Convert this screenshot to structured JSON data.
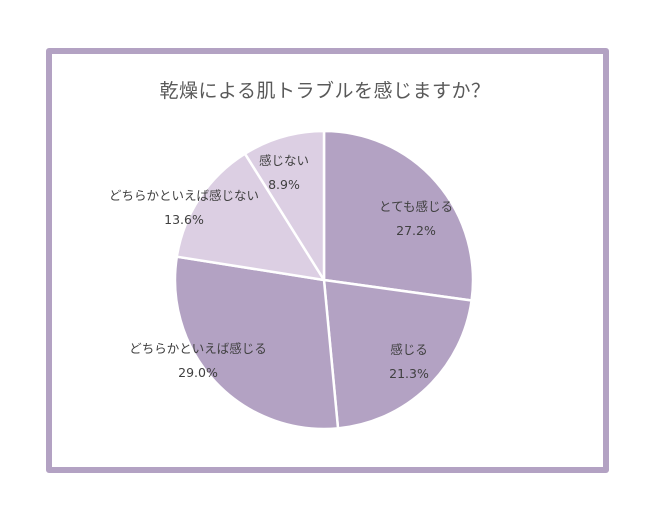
{
  "chart_data": {
    "type": "pie",
    "title": "乾燥による肌トラブルを感じますか？",
    "slices": [
      {
        "label": "とても感じる",
        "value": 27.2,
        "value_label": "27.2%",
        "color": "#b3a2c3"
      },
      {
        "label": "感じる",
        "value": 21.3,
        "value_label": "21.3%",
        "color": "#b3a2c3"
      },
      {
        "label": "どちらかといえば感じる",
        "value": 29.0,
        "value_label": "29.0%",
        "color": "#b3a2c3"
      },
      {
        "label": "どちらかといえば感じない",
        "value": 13.6,
        "value_label": "13.6%",
        "color": "#dccfe3"
      },
      {
        "label": "感じない",
        "value": 8.9,
        "value_label": "8.9%",
        "color": "#dccfe3"
      }
    ],
    "start_angle_deg": 0,
    "direction": "clockwise",
    "legend": "none"
  }
}
